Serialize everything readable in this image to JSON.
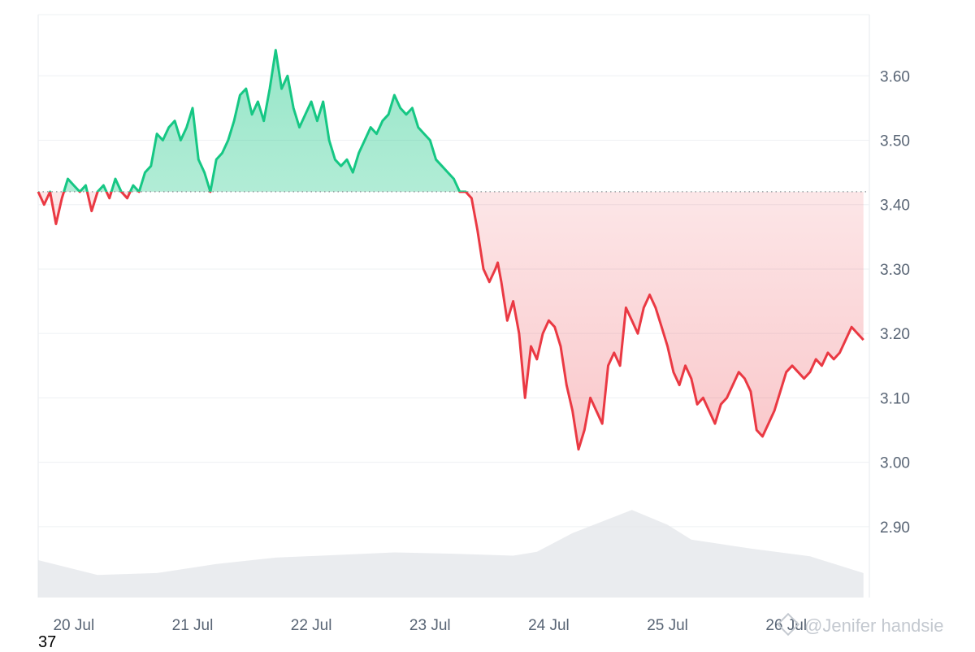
{
  "chart_data": {
    "type": "area",
    "baseline": 3.42,
    "ylim": [
      2.79,
      3.695
    ],
    "y_ticks": [
      "3.60",
      "3.50",
      "3.40",
      "3.30",
      "3.20",
      "3.10",
      "3.00",
      "2.90"
    ],
    "y_tick_values": [
      3.6,
      3.5,
      3.4,
      3.3,
      3.2,
      3.1,
      3.0,
      2.9
    ],
    "x_ticks": [
      "20 Jul",
      "21 Jul",
      "22 Jul",
      "23 Jul",
      "24 Jul",
      "25 Jul",
      "26 Jul"
    ],
    "x_tick_values": [
      0.3,
      1.3,
      2.3,
      3.3,
      4.3,
      5.3,
      6.3
    ],
    "xlim": [
      0,
      7.0
    ],
    "colors": {
      "up": "#16c784",
      "down": "#ea3943",
      "volume": "#e3e6ea"
    },
    "grid": true,
    "price": {
      "x": [
        0.0,
        0.05,
        0.1,
        0.15,
        0.2,
        0.25,
        0.3,
        0.35,
        0.4,
        0.45,
        0.5,
        0.55,
        0.6,
        0.65,
        0.7,
        0.75,
        0.8,
        0.85,
        0.9,
        0.95,
        1.0,
        1.05,
        1.1,
        1.15,
        1.2,
        1.25,
        1.3,
        1.35,
        1.4,
        1.45,
        1.5,
        1.55,
        1.6,
        1.65,
        1.7,
        1.75,
        1.8,
        1.85,
        1.9,
        1.95,
        2.0,
        2.05,
        2.1,
        2.15,
        2.2,
        2.25,
        2.3,
        2.35,
        2.4,
        2.45,
        2.5,
        2.55,
        2.6,
        2.65,
        2.7,
        2.75,
        2.8,
        2.85,
        2.9,
        2.95,
        3.0,
        3.05,
        3.1,
        3.15,
        3.2,
        3.25,
        3.3,
        3.35,
        3.4,
        3.45,
        3.5,
        3.55,
        3.6,
        3.65,
        3.7,
        3.75,
        3.8,
        3.85,
        3.87,
        3.9,
        3.95,
        4.0,
        4.05,
        4.1,
        4.15,
        4.2,
        4.25,
        4.3,
        4.35,
        4.4,
        4.45,
        4.5,
        4.55,
        4.6,
        4.65,
        4.7,
        4.75,
        4.8,
        4.85,
        4.9,
        4.95,
        5.0,
        5.05,
        5.1,
        5.15,
        5.2,
        5.25,
        5.3,
        5.35,
        5.4,
        5.45,
        5.5,
        5.55,
        5.6,
        5.65,
        5.7,
        5.75,
        5.8,
        5.85,
        5.9,
        5.95,
        6.0,
        6.05,
        6.1,
        6.15,
        6.2,
        6.25,
        6.3,
        6.35,
        6.4,
        6.45,
        6.5,
        6.55,
        6.6,
        6.65,
        6.7,
        6.75,
        6.8,
        6.85,
        6.9,
        6.95
      ],
      "y": [
        3.42,
        3.4,
        3.42,
        3.37,
        3.41,
        3.44,
        3.43,
        3.42,
        3.43,
        3.39,
        3.42,
        3.43,
        3.41,
        3.44,
        3.42,
        3.41,
        3.43,
        3.42,
        3.45,
        3.46,
        3.51,
        3.5,
        3.52,
        3.53,
        3.5,
        3.52,
        3.55,
        3.47,
        3.45,
        3.42,
        3.47,
        3.48,
        3.5,
        3.53,
        3.57,
        3.58,
        3.54,
        3.56,
        3.53,
        3.58,
        3.64,
        3.58,
        3.6,
        3.55,
        3.52,
        3.54,
        3.56,
        3.53,
        3.56,
        3.5,
        3.47,
        3.46,
        3.47,
        3.45,
        3.48,
        3.5,
        3.52,
        3.51,
        3.53,
        3.54,
        3.57,
        3.55,
        3.54,
        3.55,
        3.52,
        3.51,
        3.5,
        3.47,
        3.46,
        3.45,
        3.44,
        3.42,
        3.42,
        3.41,
        3.36,
        3.3,
        3.28,
        3.3,
        3.31,
        3.28,
        3.22,
        3.25,
        3.2,
        3.1,
        3.18,
        3.16,
        3.2,
        3.22,
        3.21,
        3.18,
        3.12,
        3.08,
        3.02,
        3.05,
        3.1,
        3.08,
        3.06,
        3.15,
        3.17,
        3.15,
        3.24,
        3.22,
        3.2,
        3.24,
        3.26,
        3.24,
        3.21,
        3.18,
        3.14,
        3.12,
        3.15,
        3.13,
        3.09,
        3.1,
        3.08,
        3.06,
        3.09,
        3.1,
        3.12,
        3.14,
        3.13,
        3.11,
        3.05,
        3.04,
        3.06,
        3.08,
        3.11,
        3.14,
        3.15,
        3.14,
        3.13,
        3.14,
        3.16,
        3.15,
        3.17,
        3.16,
        3.17,
        3.19,
        3.21,
        3.2,
        3.19
      ],
      "last": 3.19
    },
    "volume_profile": {
      "x": [
        0.0,
        0.5,
        1.0,
        1.5,
        2.0,
        2.5,
        3.0,
        3.5,
        4.0,
        4.2,
        4.5,
        5.0,
        5.3,
        5.5,
        6.0,
        6.5,
        6.95
      ],
      "y": [
        0.58,
        0.35,
        0.38,
        0.52,
        0.62,
        0.66,
        0.7,
        0.68,
        0.65,
        0.71,
        1.0,
        1.36,
        1.13,
        0.9,
        0.76,
        0.64,
        0.38
      ]
    }
  },
  "corner_label": "37",
  "watermark": "@Jenifer handsie"
}
